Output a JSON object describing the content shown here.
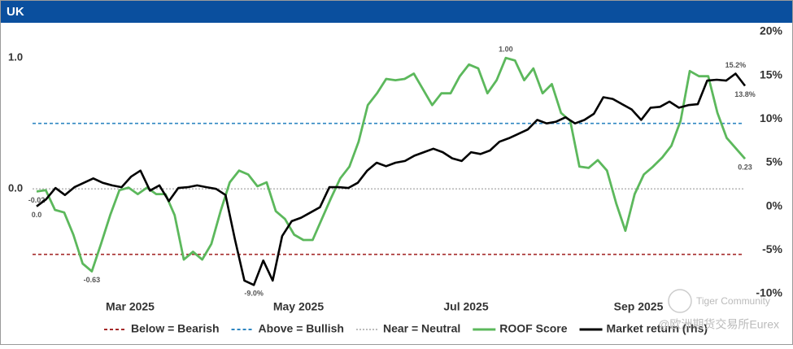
{
  "chart_data": {
    "type": "line",
    "title": "UK",
    "xtick_labels": [
      "Mar 2025",
      "May 2025",
      "Jul 2025",
      "Sep 2025"
    ],
    "ylim": [
      -0.8,
      1.2
    ],
    "yticks": [
      {
        "value": 0,
        "label": "0.0"
      },
      {
        "value": 1,
        "label": "1.0"
      }
    ],
    "y2lim": [
      -10,
      20
    ],
    "y2ticks": [
      {
        "value": -10,
        "label": "-10%"
      },
      {
        "value": -5,
        "label": "-5%"
      },
      {
        "value": 0,
        "label": "0%"
      },
      {
        "value": 5,
        "label": "5%"
      },
      {
        "value": 10,
        "label": "10%"
      },
      {
        "value": 15,
        "label": "15%"
      },
      {
        "value": 20,
        "label": "20%"
      }
    ],
    "reference_lines": [
      {
        "name": "Below = Bearish",
        "value": -0.5,
        "color": "#a52a2a",
        "style": "dashed"
      },
      {
        "name": "Above = Bullish",
        "value": 0.5,
        "color": "#2e86c1",
        "style": "dashed"
      },
      {
        "name": "Near = Neutral",
        "value": 0,
        "color": "#bbbbbb",
        "style": "dotted"
      }
    ],
    "series": [
      {
        "name": "ROOF Score",
        "color": "#5cb85c",
        "axis": "y",
        "values": [
          -0.02,
          -0.01,
          -0.16,
          -0.18,
          -0.35,
          -0.57,
          -0.63,
          -0.42,
          -0.2,
          -0.01,
          0.01,
          -0.04,
          0.01,
          -0.04,
          -0.04,
          -0.2,
          -0.54,
          -0.48,
          -0.54,
          -0.42,
          -0.17,
          0.05,
          0.14,
          0.11,
          0.02,
          0.05,
          -0.17,
          -0.23,
          -0.35,
          -0.39,
          -0.39,
          -0.23,
          -0.07,
          0.08,
          0.17,
          0.36,
          0.64,
          0.73,
          0.84,
          0.83,
          0.84,
          0.88,
          0.76,
          0.64,
          0.73,
          0.73,
          0.86,
          0.95,
          0.92,
          0.73,
          0.83,
          1.0,
          0.98,
          0.83,
          0.92,
          0.73,
          0.8,
          0.58,
          0.52,
          0.17,
          0.16,
          0.22,
          0.14,
          -0.11,
          -0.32,
          -0.04,
          0.11,
          0.17,
          0.24,
          0.33,
          0.52,
          0.9,
          0.86,
          0.86,
          0.58,
          0.39,
          0.31,
          0.23
        ],
        "value_labels": [
          "-0.02",
          null,
          null,
          null,
          null,
          null,
          "-0.63",
          null,
          null,
          null,
          null,
          null,
          null,
          null,
          null,
          null,
          null,
          null,
          null,
          null,
          null,
          null,
          null,
          null,
          null,
          null,
          null,
          null,
          null,
          null,
          null,
          null,
          null,
          null,
          null,
          null,
          null,
          null,
          null,
          null,
          null,
          null,
          null,
          null,
          null,
          null,
          null,
          null,
          null,
          null,
          null,
          "1.00",
          null,
          null,
          null,
          null,
          null,
          null,
          null,
          null,
          null,
          null,
          null,
          null,
          null,
          null,
          null,
          null,
          null,
          null,
          null,
          null,
          null,
          null,
          null,
          null,
          null,
          "0.23"
        ]
      },
      {
        "name": "Market return (rhs)",
        "color": "#000000",
        "axis": "y2",
        "values": [
          0.0,
          0.8,
          2.1,
          1.3,
          2.2,
          2.7,
          3.2,
          2.7,
          2.4,
          2.2,
          3.4,
          4.1,
          1.8,
          2.4,
          0.6,
          2.1,
          2.2,
          2.4,
          2.2,
          2.0,
          1.3,
          -3.8,
          -8.5,
          -9.0,
          -6.2,
          -8.5,
          -3.4,
          -1.7,
          -1.3,
          -0.7,
          -0.1,
          2.2,
          2.2,
          2.1,
          2.7,
          4.1,
          5.0,
          4.6,
          5.0,
          5.2,
          5.8,
          6.2,
          6.6,
          6.2,
          5.5,
          5.2,
          6.2,
          6.0,
          6.4,
          7.4,
          7.8,
          8.3,
          8.8,
          9.9,
          9.5,
          9.7,
          10.2,
          9.5,
          9.9,
          10.6,
          12.5,
          12.3,
          11.7,
          11.1,
          9.9,
          11.3,
          11.4,
          12.0,
          11.3,
          11.6,
          11.7,
          14.4,
          14.5,
          14.4,
          15.2,
          13.8
        ],
        "value_labels": [
          "0.0",
          null,
          null,
          null,
          null,
          null,
          null,
          null,
          null,
          null,
          null,
          null,
          null,
          null,
          null,
          null,
          null,
          null,
          null,
          null,
          null,
          null,
          null,
          "-9.0%",
          null,
          null,
          null,
          null,
          null,
          null,
          null,
          null,
          null,
          null,
          null,
          null,
          null,
          null,
          null,
          null,
          null,
          null,
          null,
          null,
          null,
          null,
          null,
          null,
          null,
          null,
          null,
          null,
          null,
          null,
          null,
          null,
          null,
          null,
          null,
          null,
          null,
          null,
          null,
          null,
          null,
          null,
          null,
          null,
          null,
          null,
          null,
          null,
          null,
          null,
          "15.2%",
          "13.8%"
        ]
      }
    ],
    "legend": "bottom",
    "watermark": [
      "Tiger Community",
      "@欧洲期货交易所Eurex"
    ]
  }
}
